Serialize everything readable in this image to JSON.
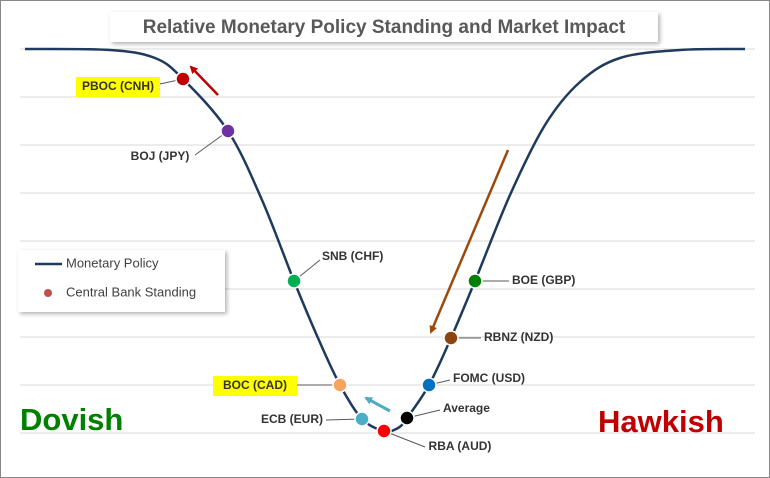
{
  "title": "Relative Monetary Policy Standing and Market Impact",
  "legend": {
    "items": [
      {
        "label": "Monetary Policy",
        "color": "#1f3a5f"
      },
      {
        "label": "Central Bank Standing",
        "color": "#c0504d"
      }
    ]
  },
  "nodes": [
    {
      "label": "PBOC (CNH)",
      "color": "#c00000",
      "highlight": true
    },
    {
      "label": "BOJ (JPY)",
      "color": "#7030a0",
      "highlight": false
    },
    {
      "label": "SNB (CHF)",
      "color": "#00b050",
      "highlight": false
    },
    {
      "label": "BOC (CAD)",
      "color": "#f4a460",
      "highlight": true
    },
    {
      "label": "ECB (EUR)",
      "color": "#4bacc6",
      "highlight": false
    },
    {
      "label": "RBA (AUD)",
      "color": "#ff0000",
      "highlight": false
    },
    {
      "label": "Average",
      "color": "#000000",
      "highlight": false
    },
    {
      "label": "FOMC (USD)",
      "color": "#0070c0",
      "highlight": false
    },
    {
      "label": "RBNZ (NZD)",
      "color": "#8b4513",
      "highlight": false
    },
    {
      "label": "BOE (GBP)",
      "color": "#008000",
      "highlight": false
    }
  ],
  "regions": {
    "left": {
      "label": "Dovish",
      "color": "#008000"
    },
    "right": {
      "label": "Hawkish",
      "color": "#c00000"
    }
  }
}
